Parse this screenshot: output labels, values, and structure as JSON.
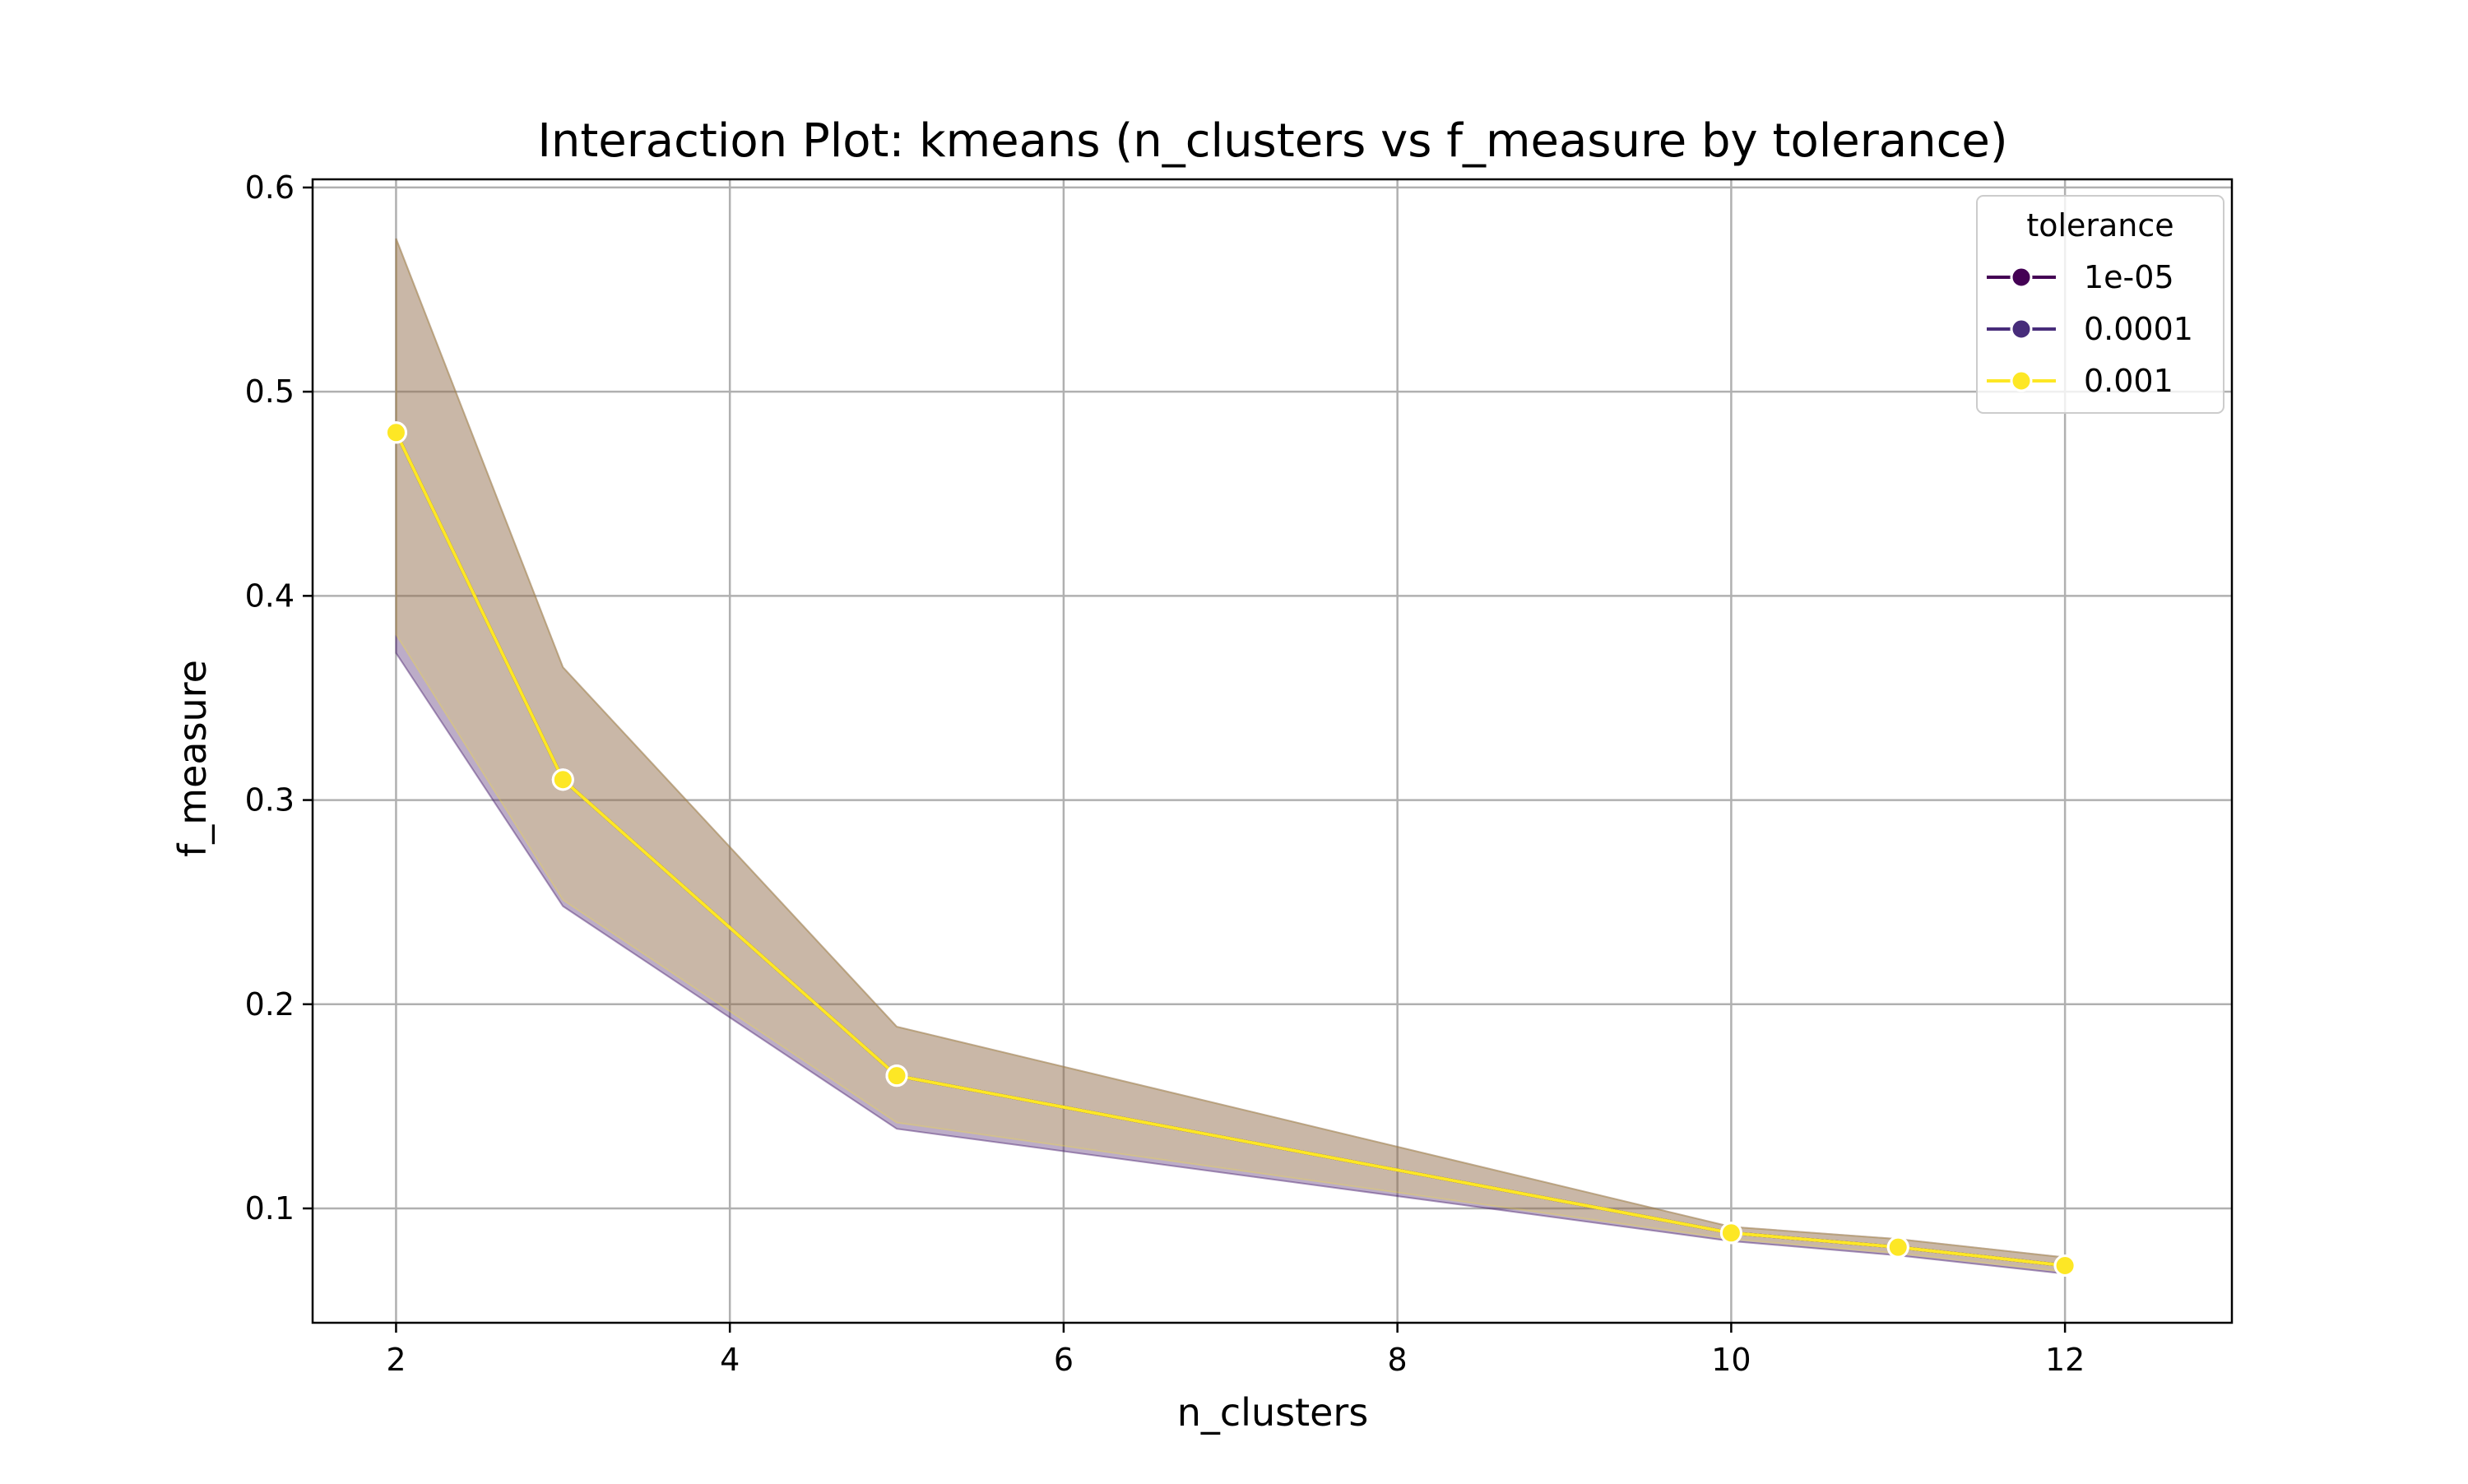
{
  "chart_data": {
    "type": "line",
    "title": "Interaction Plot: kmeans (n_clusters vs f_measure by tolerance)",
    "xlabel": "n_clusters",
    "ylabel": "f_measure",
    "xlim": [
      1.5,
      13.0
    ],
    "ylim": [
      0.044,
      0.604
    ],
    "xticks": [
      2,
      4,
      6,
      8,
      10,
      12
    ],
    "xtick_labels": [
      "2",
      "4",
      "6",
      "8",
      "10",
      "12"
    ],
    "yticks": [
      0.1,
      0.2,
      0.3,
      0.4,
      0.5,
      0.6
    ],
    "ytick_labels": [
      "0.1",
      "0.2",
      "0.3",
      "0.4",
      "0.5",
      "0.6"
    ],
    "grid": true,
    "legend": {
      "title": "tolerance",
      "placement": "top-right"
    },
    "x": [
      2,
      3,
      5,
      10,
      11,
      12
    ],
    "series": [
      {
        "name": "1e-05",
        "color": "#440154",
        "values": [
          0.48,
          0.31,
          0.165,
          0.088,
          0.081,
          0.072
        ],
        "ci_low": [
          0.372,
          0.248,
          0.139,
          0.084,
          0.077,
          0.068
        ],
        "ci_high": [
          0.575,
          0.365,
          0.189,
          0.091,
          0.085,
          0.076
        ]
      },
      {
        "name": "0.0001",
        "color": "#472c7a",
        "values": [
          0.48,
          0.31,
          0.165,
          0.088,
          0.081,
          0.072
        ],
        "ci_low": [
          0.372,
          0.248,
          0.139,
          0.084,
          0.077,
          0.068
        ],
        "ci_high": [
          0.575,
          0.365,
          0.189,
          0.091,
          0.085,
          0.076
        ]
      },
      {
        "name": "0.001",
        "color": "#fde725",
        "values": [
          0.48,
          0.31,
          0.165,
          0.088,
          0.081,
          0.072
        ],
        "ci_low": [
          0.381,
          0.251,
          0.142,
          0.085,
          0.078,
          0.069
        ],
        "ci_high": [
          0.575,
          0.365,
          0.189,
          0.091,
          0.085,
          0.076
        ]
      }
    ]
  }
}
